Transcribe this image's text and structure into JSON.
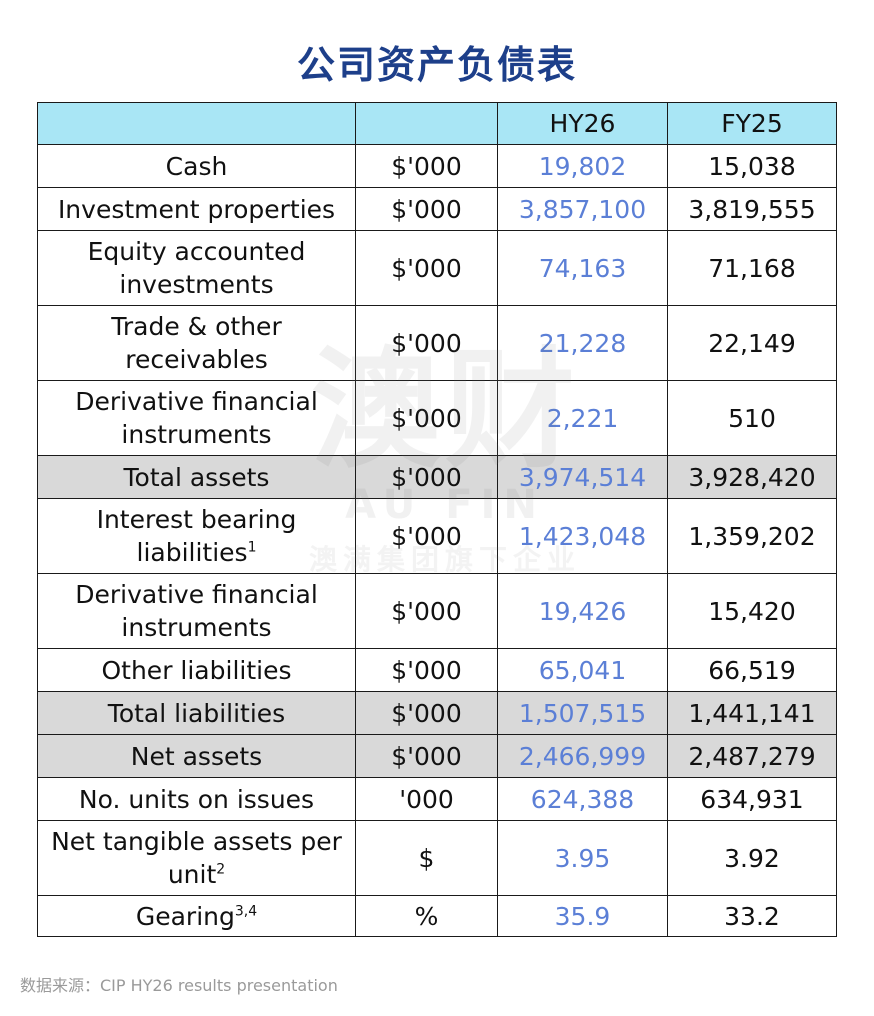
{
  "title": "公司资产负债表",
  "table": {
    "headers": [
      "",
      "",
      "HY26",
      "FY25"
    ],
    "rows": [
      {
        "label": "Cash",
        "sup": "",
        "unit": "$'000",
        "hy26": "19,802",
        "fy25": "15,038"
      },
      {
        "label": "Investment properties",
        "sup": "",
        "unit": "$'000",
        "hy26": "3,857,100",
        "fy25": "3,819,555"
      },
      {
        "label": "Equity accounted investments",
        "sup": "",
        "unit": "$'000",
        "hy26": "74,163",
        "fy25": "71,168"
      },
      {
        "label": "Trade & other receivables",
        "sup": "",
        "unit": "$'000",
        "hy26": "21,228",
        "fy25": "22,149"
      },
      {
        "label": "Derivative financial instruments",
        "sup": "",
        "unit": "$'000",
        "hy26": "2,221",
        "fy25": "510"
      },
      {
        "label": "Total assets",
        "sup": "",
        "unit": "$'000",
        "hy26": "3,974,514",
        "fy25": "3,928,420"
      },
      {
        "label": "Interest bearing liabilities",
        "sup": "1",
        "unit": "$'000",
        "hy26": "1,423,048",
        "fy25": "1,359,202"
      },
      {
        "label": "Derivative financial instruments",
        "sup": "",
        "unit": "$'000",
        "hy26": "19,426",
        "fy25": "15,420"
      },
      {
        "label": "Other liabilities",
        "sup": "",
        "unit": "$'000",
        "hy26": "65,041",
        "fy25": "66,519"
      },
      {
        "label": "Total liabilities",
        "sup": "",
        "unit": "$'000",
        "hy26": "1,507,515",
        "fy25": "1,441,141"
      },
      {
        "label": "Net assets",
        "sup": "",
        "unit": "$'000",
        "hy26": "2,466,999",
        "fy25": "2,487,279"
      },
      {
        "label": "No. units on issues",
        "sup": "",
        "unit": "'000",
        "hy26": "624,388",
        "fy25": "634,931"
      },
      {
        "label": "Net tangible assets per unit",
        "sup": "2",
        "unit": "$",
        "hy26": "3.95",
        "fy25": "3.92"
      },
      {
        "label": "Gearing",
        "sup": "3,4",
        "unit": "%",
        "hy26": "35.9",
        "fy25": "33.2"
      }
    ]
  },
  "watermark": {
    "main": "澳财",
    "sub": "AU FIN",
    "tagline": "澳满集团旗下企业"
  },
  "source": "数据来源：CIP HY26 results presentation",
  "colors": {
    "title": "#1d3f8a",
    "header_bg": "#a9e6f5",
    "total_bg": "#d9d9d9",
    "hy26_text": "#5b7fd6"
  }
}
